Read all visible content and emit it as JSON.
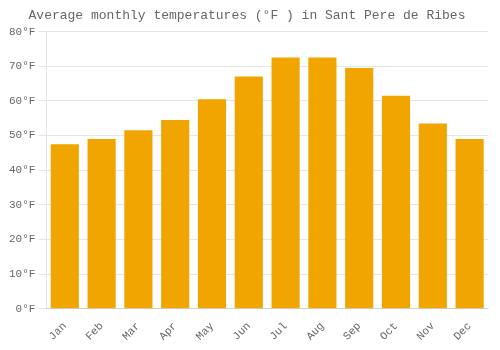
{
  "chart_data": {
    "type": "bar",
    "title": "Average monthly temperatures (°F ) in Sant Pere de Ribes",
    "categories": [
      "Jan",
      "Feb",
      "Mar",
      "Apr",
      "May",
      "Jun",
      "Jul",
      "Aug",
      "Sep",
      "Oct",
      "Nov",
      "Dec"
    ],
    "values": [
      47.5,
      49.0,
      51.5,
      54.5,
      60.5,
      67.0,
      72.5,
      72.5,
      69.5,
      61.5,
      53.5,
      49.0
    ],
    "color": "#F0A500",
    "ylim": [
      0,
      80
    ],
    "yticks": [
      {
        "value": 0,
        "label": "0°F"
      },
      {
        "value": 10,
        "label": "10°F"
      },
      {
        "value": 20,
        "label": "20°F"
      },
      {
        "value": 30,
        "label": "30°F"
      },
      {
        "value": 40,
        "label": "40°F"
      },
      {
        "value": 50,
        "label": "50°F"
      },
      {
        "value": 60,
        "label": "60°F"
      },
      {
        "value": 70,
        "label": "70°F"
      },
      {
        "value": 80,
        "label": "80°F"
      }
    ],
    "grid": true
  }
}
